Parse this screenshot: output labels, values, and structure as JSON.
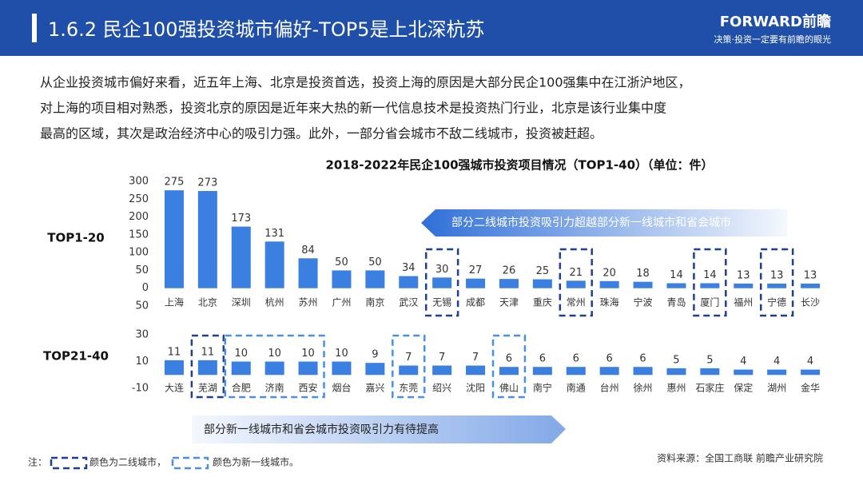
{
  "header": {
    "title": "1.6.2 民企100强投资城市偏好-TOP5是上北深杭苏",
    "logo": "FORWARD前瞻",
    "slogan": "决策·投资一定要有前瞻的眼光"
  },
  "paragraph": [
    "从企业投资城市偏好来看，近五年上海、北京是投资首选，投资上海的原因是大部分民企100强集中在江浙沪地区，",
    "对上海的项目相对熟悉，投资北京的原因是近年来大热的新一代信息技术是投资热门行业，北京是该行业集中度",
    "最高的区域，其次是政治经济中心的吸引力强。此外，一部分省会城市不敌二线城市，投资被赶超。"
  ],
  "chart_data": [
    {
      "type": "bar",
      "title": "2018-2022年民企100强城市投资项目情况（TOP1-40）（单位：件）",
      "group_label": "TOP1-20",
      "categories": [
        "上海",
        "北京",
        "深圳",
        "杭州",
        "苏州",
        "广州",
        "南京",
        "武汉",
        "无锡",
        "成都",
        "天津",
        "重庆",
        "常州",
        "珠海",
        "宁波",
        "青岛",
        "厦门",
        "福州",
        "宁德",
        "长沙"
      ],
      "values": [
        275,
        273,
        173,
        131,
        84,
        50,
        50,
        34,
        30,
        27,
        26,
        25,
        21,
        20,
        18,
        14,
        14,
        13,
        13,
        13
      ],
      "color": "#3b7fe0",
      "ylim": [
        -50,
        300
      ],
      "yticks": [
        300,
        250,
        200,
        150,
        100,
        50,
        0,
        {
          "value": -50,
          "label": "50"
        }
      ],
      "grid": false,
      "annotation": "部分二线城市投资吸引力超越部分新一线城市和省会城市",
      "boxes": [
        {
          "indices": [
            8
          ],
          "color": "#1f3f8f"
        },
        {
          "indices": [
            12
          ],
          "color": "#1f3f8f"
        },
        {
          "indices": [
            16
          ],
          "color": "#1f3f8f"
        },
        {
          "indices": [
            18
          ],
          "color": "#1f3f8f"
        }
      ]
    },
    {
      "type": "bar",
      "group_label": "TOP21-40",
      "categories": [
        "大连",
        "芜湖",
        "合肥",
        "济南",
        "西安",
        "烟台",
        "嘉兴",
        "东莞",
        "绍兴",
        "沈阳",
        "佛山",
        "南宁",
        "南通",
        "台州",
        "徐州",
        "惠州",
        "石家庄",
        "保定",
        "湖州",
        "金华"
      ],
      "values": [
        11,
        11,
        10,
        10,
        10,
        10,
        9,
        7,
        7,
        7,
        6,
        6,
        6,
        6,
        6,
        5,
        5,
        4,
        4,
        4
      ],
      "color": "#3b7fe0",
      "ylim": [
        -10,
        30
      ],
      "yticks": [
        30,
        10,
        -10
      ],
      "grid": false,
      "annotation": "部分新一线城市和省会城市投资吸引力有待提高",
      "boxes": [
        {
          "indices": [
            1
          ],
          "color": "#1f3f8f"
        },
        {
          "indices": [
            2,
            3,
            4
          ],
          "color": "#4a90e2"
        },
        {
          "indices": [
            7
          ],
          "color": "#4a90e2"
        },
        {
          "indices": [
            10
          ],
          "color": "#4a90e2"
        }
      ]
    }
  ],
  "note": {
    "prefix": "注：",
    "dark": "颜色为二线城市，",
    "light": "颜色为新一线城市。"
  },
  "source": "资料来源：全国工商联 前瞻产业研究院"
}
